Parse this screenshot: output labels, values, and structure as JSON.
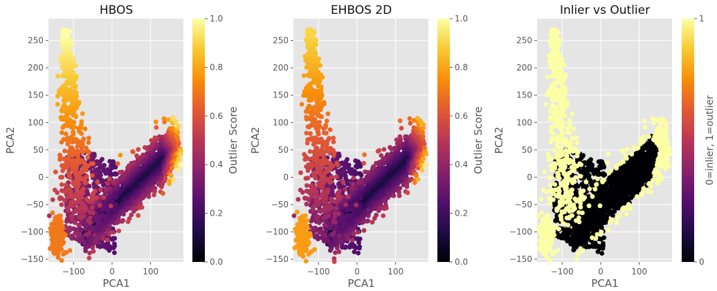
{
  "chart_data": [
    {
      "type": "scatter",
      "title": "HBOS",
      "xlabel": "PCA1",
      "ylabel": "PCA2",
      "xlim": [
        -165,
        185
      ],
      "ylim": [
        -155,
        290
      ],
      "xticks": [
        -100,
        0,
        100
      ],
      "yticks": [
        -150,
        -100,
        -50,
        0,
        50,
        100,
        150,
        200,
        250
      ],
      "grid": true,
      "colormap": "inferno",
      "colorbar": {
        "label": "Outlier Score",
        "range": [
          0.0,
          1.0
        ],
        "ticks": [
          "0.0",
          "0.2",
          "0.4",
          "0.6",
          "0.8",
          "1.0"
        ]
      },
      "scoring": "hbos"
    },
    {
      "type": "scatter",
      "title": "EHBOS 2D",
      "xlabel": "PCA1",
      "ylabel": "PCA2",
      "xlim": [
        -165,
        185
      ],
      "ylim": [
        -155,
        290
      ],
      "xticks": [
        -100,
        0,
        100
      ],
      "yticks": [
        -150,
        -100,
        -50,
        0,
        50,
        100,
        150,
        200,
        250
      ],
      "grid": true,
      "colormap": "inferno",
      "colorbar": {
        "label": "Outlier Score",
        "range": [
          0.0,
          1.0
        ],
        "ticks": [
          "0.0",
          "0.2",
          "0.4",
          "0.6",
          "0.8",
          "1.0"
        ]
      },
      "scoring": "ehbos"
    },
    {
      "type": "scatter",
      "title": "Inlier vs Outlier",
      "xlabel": "PCA1",
      "ylabel": "PCA2",
      "xlim": [
        -165,
        185
      ],
      "ylim": [
        -155,
        290
      ],
      "xticks": [
        -100,
        0,
        100
      ],
      "yticks": [
        -150,
        -100,
        -50,
        0,
        50,
        100,
        150,
        200,
        250
      ],
      "grid": true,
      "colormap": "inferno",
      "colorbar": {
        "label": "0=inlier, 1=outlier",
        "range": [
          0,
          1
        ],
        "ticks": [
          "0",
          "1"
        ]
      },
      "scoring": "binary"
    }
  ],
  "style": {
    "plot_bg": "#e5e5e5",
    "grid_color": "#ffffff",
    "text_color": "#555555",
    "title_color": "#111111"
  }
}
